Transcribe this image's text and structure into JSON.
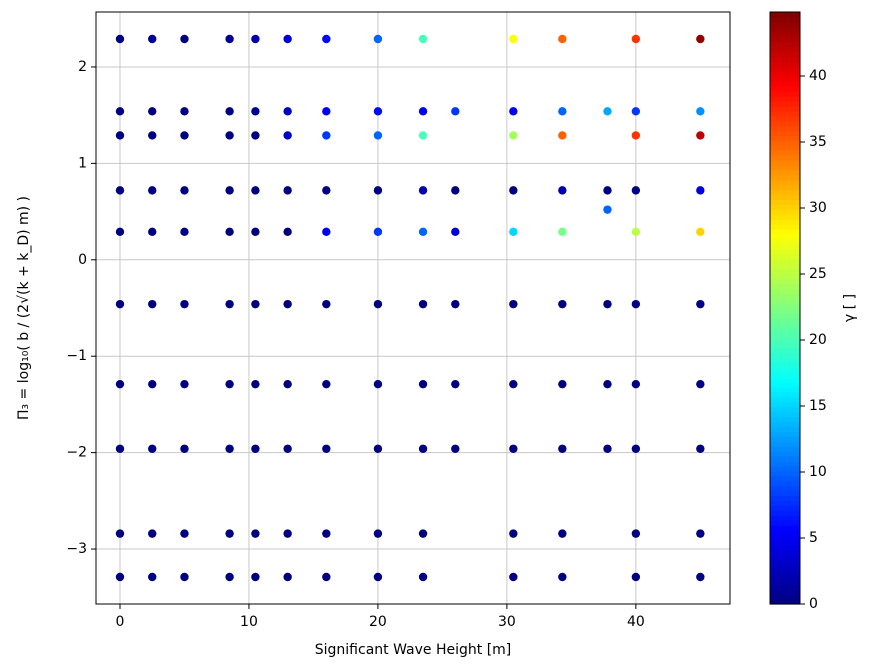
{
  "chart_data": {
    "type": "scatter",
    "x_label": "Significant Wave Height [m]",
    "y_label": "Π₃ = log₁₀( b / (2√(k + k_D) m) )",
    "colorbar_label": "γ [ ]",
    "colormap": "jet",
    "xlim": [
      -1.86,
      47.3
    ],
    "ylim": [
      -3.57,
      2.57
    ],
    "clim": [
      0,
      44.85
    ],
    "xticks": [
      0,
      10,
      20,
      30,
      40
    ],
    "yticks": [
      {
        "value": -3,
        "label": "−3"
      },
      {
        "value": -2,
        "label": "−2"
      },
      {
        "value": -1,
        "label": "−1"
      },
      0,
      1,
      2
    ],
    "cticks": [
      0,
      5,
      10,
      15,
      20,
      25,
      30,
      35,
      40
    ],
    "grid": true,
    "x": [
      0,
      0,
      0,
      0,
      0,
      0,
      0,
      0,
      0,
      0,
      2.5,
      2.5,
      2.5,
      2.5,
      2.5,
      2.5,
      2.5,
      2.5,
      2.5,
      2.5,
      5,
      5,
      5,
      5,
      5,
      5,
      5,
      5,
      5,
      5,
      8.5,
      8.5,
      8.5,
      8.5,
      8.5,
      8.5,
      8.5,
      8.5,
      8.5,
      8.5,
      10.5,
      10.5,
      10.5,
      10.5,
      10.5,
      10.5,
      10.5,
      10.5,
      10.5,
      10.5,
      13,
      13,
      13,
      13,
      13,
      13,
      13,
      13,
      13,
      13,
      16,
      16,
      16,
      16,
      16,
      16,
      16,
      16,
      16,
      16,
      20,
      20,
      20,
      20,
      20,
      20,
      20,
      20,
      20,
      20,
      23.5,
      23.5,
      23.5,
      23.5,
      23.5,
      23.5,
      23.5,
      23.5,
      23.5,
      23.5,
      26,
      26,
      26,
      26,
      26,
      26,
      30.5,
      30.5,
      30.5,
      30.5,
      30.5,
      30.5,
      30.5,
      30.5,
      30.5,
      30.5,
      34.3,
      34.3,
      34.3,
      34.3,
      34.3,
      34.3,
      34.3,
      34.3,
      34.3,
      34.3,
      37.8,
      37.8,
      37.8,
      37.8,
      37.8,
      37.8,
      40,
      40,
      40,
      40,
      40,
      40,
      40,
      40,
      40,
      40,
      45,
      45,
      45,
      45,
      45,
      45,
      45,
      45,
      45,
      45
    ],
    "values": [
      2.29,
      1.54,
      1.29,
      0.72,
      0.29,
      -0.46,
      -1.29,
      -1.96,
      -2.84,
      -3.29,
      2.29,
      1.54,
      1.29,
      0.72,
      0.29,
      -0.46,
      -1.29,
      -1.96,
      -2.84,
      -3.29,
      2.29,
      1.54,
      1.29,
      0.72,
      0.29,
      -0.46,
      -1.29,
      -1.96,
      -2.84,
      -3.29,
      2.29,
      1.54,
      1.29,
      0.72,
      0.29,
      -0.46,
      -1.29,
      -1.96,
      -2.84,
      -3.29,
      2.29,
      1.54,
      1.29,
      0.72,
      0.29,
      -0.46,
      -1.29,
      -1.96,
      -2.84,
      -3.29,
      2.29,
      1.54,
      1.29,
      0.72,
      0.29,
      -0.46,
      -1.29,
      -1.96,
      -2.84,
      -3.29,
      2.29,
      1.54,
      1.29,
      0.72,
      0.29,
      -0.46,
      -1.29,
      -1.96,
      -2.84,
      -3.29,
      2.29,
      1.54,
      1.29,
      0.72,
      0.29,
      -0.46,
      -1.29,
      -1.96,
      -2.84,
      -3.29,
      2.29,
      1.54,
      1.29,
      0.72,
      0.29,
      -0.46,
      -1.29,
      -1.96,
      -2.84,
      -3.29,
      1.54,
      0.72,
      0.29,
      -0.46,
      -1.29,
      -1.96,
      2.29,
      1.54,
      1.29,
      0.72,
      0.29,
      -0.46,
      -1.29,
      -1.96,
      -2.84,
      -3.29,
      2.29,
      1.54,
      1.29,
      0.72,
      0.29,
      -0.46,
      -1.29,
      -1.96,
      -2.84,
      -3.29,
      1.54,
      0.72,
      0.52,
      -0.46,
      -1.29,
      -1.96,
      2.29,
      1.54,
      1.29,
      0.72,
      0.29,
      -0.46,
      -1.29,
      -1.96,
      -2.84,
      -3.29,
      2.29,
      1.54,
      1.29,
      0.72,
      0.29,
      -0.46,
      -1.29,
      -1.96,
      -2.84,
      -3.29
    ],
    "c": [
      0,
      0,
      0,
      0,
      0,
      0,
      0,
      0,
      0,
      0,
      1,
      0,
      0,
      0,
      0,
      0,
      0,
      0,
      0,
      0,
      0,
      0,
      0,
      0,
      0,
      0,
      0,
      0,
      0,
      0,
      1,
      0,
      0,
      0,
      0,
      0,
      0,
      0,
      0,
      0,
      2,
      1,
      0,
      0,
      0,
      0,
      0,
      0,
      0,
      0,
      4,
      3,
      3,
      0,
      0,
      0,
      0,
      0,
      0,
      0,
      6,
      5,
      8,
      0,
      5,
      0,
      0,
      0,
      0,
      0,
      10,
      6,
      10,
      0,
      8,
      0,
      0,
      0,
      0,
      0,
      20,
      5,
      20,
      2,
      10,
      0,
      0,
      0,
      0,
      0,
      8,
      0,
      4,
      0,
      0,
      0,
      28,
      5,
      24,
      0,
      15,
      0,
      0,
      0,
      0,
      0,
      35,
      10,
      35,
      2,
      22,
      0,
      0,
      0,
      0,
      0,
      13,
      0,
      10,
      0,
      0,
      0,
      37,
      8,
      37,
      0,
      25,
      0,
      0,
      0,
      0,
      0,
      44,
      12,
      42,
      4,
      30,
      0,
      0,
      0,
      0,
      0
    ]
  }
}
